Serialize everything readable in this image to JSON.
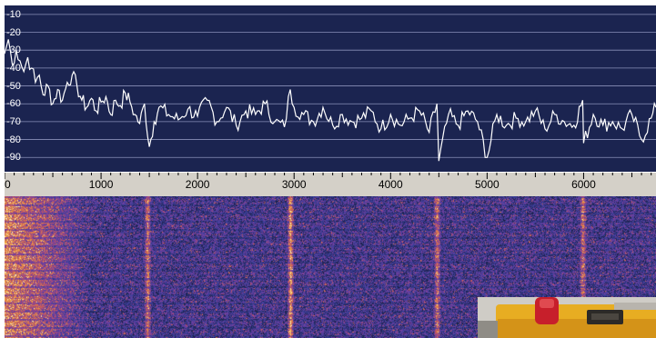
{
  "spectrum": {
    "y_tick_labels": [
      "-10",
      "-20",
      "-30",
      "-40",
      "-50",
      "-60",
      "-70",
      "-80",
      "-90"
    ],
    "y_range": [
      -5,
      -98
    ],
    "background_color": "#1b2450",
    "grid_color": "#8a8fb8",
    "trace_color": "#ffffff"
  },
  "frequency_axis": {
    "tick_labels": [
      "0",
      "1000",
      "2000",
      "3000",
      "4000",
      "5000",
      "6000"
    ],
    "range": [
      0,
      6750
    ],
    "background_color": "#d4d0c8"
  },
  "waterfall": {
    "palette": [
      "#1a1f45",
      "#3a3f9a",
      "#7a3fa0",
      "#c85a5a",
      "#f0a040",
      "#fff0b0"
    ],
    "strong_carriers_hz": [
      1480,
      2960,
      4480,
      5990
    ]
  },
  "chart_data": {
    "type": "line",
    "xlabel": "",
    "ylabel": "",
    "xlim": [
      0,
      6750
    ],
    "ylim": [
      -98,
      -5
    ],
    "x": [
      0,
      40,
      80,
      120,
      160,
      200,
      240,
      280,
      320,
      360,
      400,
      450,
      500,
      550,
      600,
      650,
      700,
      750,
      800,
      850,
      900,
      950,
      1000,
      1050,
      1100,
      1150,
      1200,
      1250,
      1300,
      1350,
      1400,
      1450,
      1500,
      1550,
      1600,
      1700,
      1800,
      1900,
      2000,
      2100,
      2200,
      2300,
      2400,
      2500,
      2600,
      2700,
      2800,
      2900,
      2960,
      3000,
      3100,
      3200,
      3300,
      3400,
      3500,
      3600,
      3700,
      3800,
      3900,
      4000,
      4100,
      4200,
      4300,
      4400,
      4480,
      4500,
      4600,
      4700,
      4800,
      4900,
      5000,
      5100,
      5200,
      5300,
      5400,
      5500,
      5600,
      5700,
      5800,
      5900,
      5990,
      6000,
      6100,
      6200,
      6300,
      6400,
      6500,
      6600,
      6700,
      6750
    ],
    "values": [
      -32,
      -24,
      -38,
      -30,
      -36,
      -42,
      -34,
      -40,
      -48,
      -44,
      -55,
      -50,
      -60,
      -52,
      -58,
      -48,
      -44,
      -50,
      -58,
      -62,
      -57,
      -64,
      -59,
      -56,
      -66,
      -58,
      -61,
      -54,
      -59,
      -66,
      -71,
      -60,
      -84,
      -70,
      -62,
      -66,
      -69,
      -63,
      -67,
      -58,
      -70,
      -62,
      -72,
      -64,
      -66,
      -60,
      -70,
      -73,
      -52,
      -62,
      -66,
      -70,
      -62,
      -72,
      -66,
      -70,
      -68,
      -64,
      -74,
      -66,
      -72,
      -68,
      -64,
      -76,
      -60,
      -92,
      -66,
      -72,
      -64,
      -70,
      -90,
      -66,
      -72,
      -68,
      -70,
      -64,
      -74,
      -66,
      -70,
      -72,
      -58,
      -82,
      -66,
      -72,
      -70,
      -74,
      -66,
      -80,
      -68,
      -62
    ]
  }
}
